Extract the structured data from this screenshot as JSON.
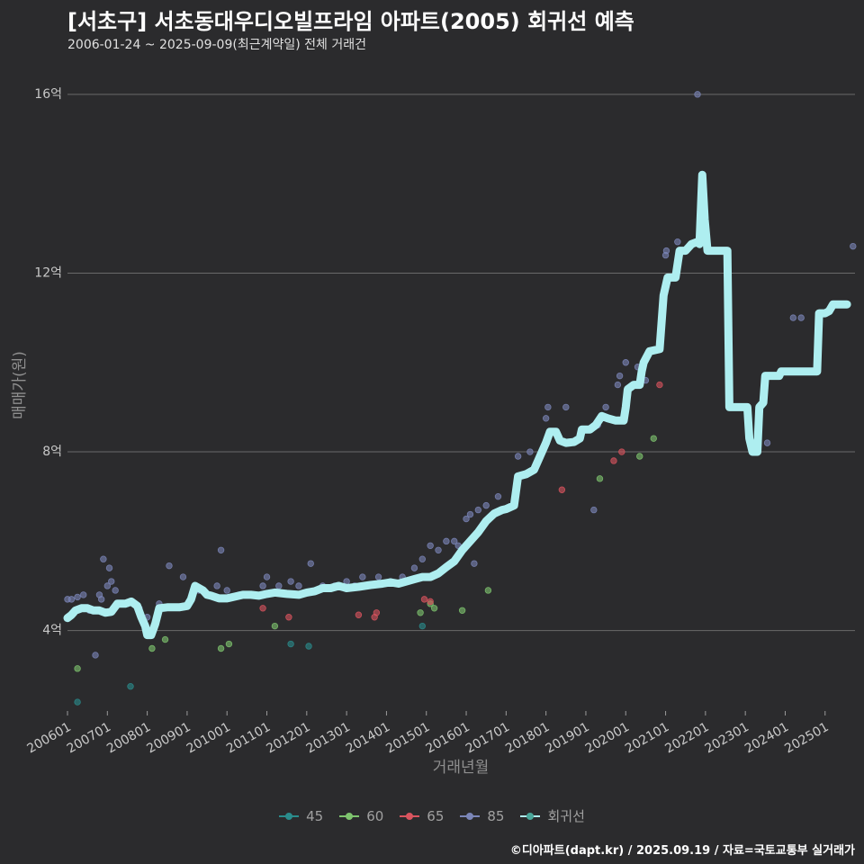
{
  "header": {
    "title": "[서초구] 서초동대우디오빌프라임 아파트(2005) 회귀선 예측",
    "subtitle": "2006-01-24 ~ 2025-09-09(최근계약일) 전체 거래건"
  },
  "footer": {
    "credit": "©디아파트(dapt.kr) / 2025.09.19 / 자료=국토교통부 실거래가"
  },
  "colors": {
    "background": "#2b2b2d",
    "grid": "#6a6a6a",
    "regression": "#aeeef0"
  },
  "chart_data": {
    "type": "scatter",
    "title": "[서초구] 서초동대우디오빌프라임 아파트(2005) 회귀선 예측",
    "subtitle": "2006-01-24 ~ 2025-09-09(최근계약일) 전체 거래건",
    "xlabel": "거래년월",
    "ylabel": "매매가(원)",
    "xlim": [
      2006.0,
      2025.75
    ],
    "ylim": [
      2.2,
      16.4
    ],
    "grid": true,
    "legend_position": "bottom",
    "x_ticks": [
      {
        "value": 2006.0,
        "label": "200601"
      },
      {
        "value": 2007.0,
        "label": "200701"
      },
      {
        "value": 2008.0,
        "label": "200801"
      },
      {
        "value": 2009.0,
        "label": "200901"
      },
      {
        "value": 2010.0,
        "label": "201001"
      },
      {
        "value": 2011.0,
        "label": "201101"
      },
      {
        "value": 2012.0,
        "label": "201201"
      },
      {
        "value": 2013.0,
        "label": "201301"
      },
      {
        "value": 2014.0,
        "label": "201401"
      },
      {
        "value": 2015.0,
        "label": "201501"
      },
      {
        "value": 2016.0,
        "label": "201601"
      },
      {
        "value": 2017.0,
        "label": "201701"
      },
      {
        "value": 2018.0,
        "label": "201801"
      },
      {
        "value": 2019.0,
        "label": "201901"
      },
      {
        "value": 2020.0,
        "label": "202001"
      },
      {
        "value": 2021.0,
        "label": "202101"
      },
      {
        "value": 2022.0,
        "label": "202201"
      },
      {
        "value": 2023.0,
        "label": "202301"
      },
      {
        "value": 2024.0,
        "label": "202401"
      },
      {
        "value": 2025.0,
        "label": "202501"
      }
    ],
    "y_ticks": [
      {
        "value": 4,
        "label": "4억"
      },
      {
        "value": 8,
        "label": "8억"
      },
      {
        "value": 12,
        "label": "12억"
      },
      {
        "value": 16,
        "label": "16억"
      }
    ],
    "series": [
      {
        "name": "45",
        "color": "#2a8c8c",
        "points": [
          [
            2006.25,
            2.4
          ],
          [
            2007.58,
            2.75
          ],
          [
            2011.6,
            3.7
          ],
          [
            2012.05,
            3.65
          ],
          [
            2014.9,
            4.1
          ]
        ]
      },
      {
        "name": "60",
        "color": "#7ec46e",
        "points": [
          [
            2006.25,
            3.15
          ],
          [
            2008.12,
            3.6
          ],
          [
            2008.45,
            3.8
          ],
          [
            2009.85,
            3.6
          ],
          [
            2010.05,
            3.7
          ],
          [
            2011.2,
            4.1
          ],
          [
            2014.85,
            4.4
          ],
          [
            2015.1,
            4.6
          ],
          [
            2015.2,
            4.5
          ],
          [
            2015.9,
            4.45
          ],
          [
            2016.55,
            4.9
          ],
          [
            2019.35,
            7.4
          ],
          [
            2020.35,
            7.9
          ],
          [
            2020.7,
            8.3
          ]
        ]
      },
      {
        "name": "65",
        "color": "#d9545e",
        "points": [
          [
            2010.9,
            4.5
          ],
          [
            2011.55,
            4.3
          ],
          [
            2013.3,
            4.35
          ],
          [
            2013.7,
            4.3
          ],
          [
            2013.75,
            4.4
          ],
          [
            2014.95,
            4.7
          ],
          [
            2015.1,
            4.65
          ],
          [
            2018.4,
            7.15
          ],
          [
            2019.7,
            7.8
          ],
          [
            2019.9,
            8.0
          ],
          [
            2020.85,
            9.5
          ]
        ]
      },
      {
        "name": "85",
        "color": "#7b86b8",
        "points": [
          [
            2006.0,
            4.7
          ],
          [
            2006.1,
            4.7
          ],
          [
            2006.25,
            4.75
          ],
          [
            2006.4,
            4.8
          ],
          [
            2006.55,
            4.45
          ],
          [
            2006.7,
            3.45
          ],
          [
            2006.8,
            4.8
          ],
          [
            2006.85,
            4.7
          ],
          [
            2006.9,
            5.6
          ],
          [
            2007.0,
            5.0
          ],
          [
            2007.05,
            5.4
          ],
          [
            2007.1,
            5.1
          ],
          [
            2007.2,
            4.9
          ],
          [
            2007.3,
            4.6
          ],
          [
            2007.5,
            4.6
          ],
          [
            2007.8,
            4.5
          ],
          [
            2008.0,
            4.3
          ],
          [
            2008.3,
            4.6
          ],
          [
            2008.55,
            5.45
          ],
          [
            2008.9,
            5.2
          ],
          [
            2009.3,
            4.9
          ],
          [
            2009.55,
            4.8
          ],
          [
            2009.75,
            5.0
          ],
          [
            2009.85,
            5.8
          ],
          [
            2010.0,
            4.9
          ],
          [
            2010.3,
            4.8
          ],
          [
            2010.6,
            4.8
          ],
          [
            2010.9,
            5.0
          ],
          [
            2011.0,
            5.2
          ],
          [
            2011.3,
            5.0
          ],
          [
            2011.6,
            5.1
          ],
          [
            2011.8,
            5.0
          ],
          [
            2012.1,
            5.5
          ],
          [
            2012.4,
            5.0
          ],
          [
            2012.7,
            5.0
          ],
          [
            2013.0,
            5.1
          ],
          [
            2013.2,
            5.0
          ],
          [
            2013.4,
            5.2
          ],
          [
            2013.8,
            5.2
          ],
          [
            2014.1,
            5.1
          ],
          [
            2014.4,
            5.2
          ],
          [
            2014.7,
            5.4
          ],
          [
            2014.9,
            5.6
          ],
          [
            2015.1,
            5.9
          ],
          [
            2015.3,
            5.8
          ],
          [
            2015.5,
            6.0
          ],
          [
            2015.7,
            6.0
          ],
          [
            2015.8,
            5.9
          ],
          [
            2016.0,
            6.5
          ],
          [
            2016.1,
            6.6
          ],
          [
            2016.2,
            5.5
          ],
          [
            2016.3,
            6.7
          ],
          [
            2016.5,
            6.8
          ],
          [
            2016.8,
            7.0
          ],
          [
            2017.3,
            7.9
          ],
          [
            2017.6,
            8.0
          ],
          [
            2018.0,
            8.75
          ],
          [
            2018.05,
            9.0
          ],
          [
            2018.5,
            9.0
          ],
          [
            2019.2,
            6.7
          ],
          [
            2019.3,
            8.6
          ],
          [
            2019.5,
            9.0
          ],
          [
            2019.8,
            9.5
          ],
          [
            2019.85,
            9.7
          ],
          [
            2020.0,
            10.0
          ],
          [
            2020.3,
            9.9
          ],
          [
            2020.5,
            9.6
          ],
          [
            2020.8,
            10.3
          ],
          [
            2021.0,
            12.4
          ],
          [
            2021.02,
            12.5
          ],
          [
            2021.3,
            12.7
          ],
          [
            2021.8,
            16.0
          ],
          [
            2023.55,
            8.2
          ],
          [
            2024.2,
            11.0
          ],
          [
            2024.4,
            11.0
          ],
          [
            2025.7,
            12.6
          ]
        ]
      },
      {
        "name": "회귀선",
        "color": "#aeeef0",
        "line": [
          [
            2006.0,
            4.28
          ],
          [
            2006.1,
            4.35
          ],
          [
            2006.2,
            4.45
          ],
          [
            2006.35,
            4.5
          ],
          [
            2006.5,
            4.5
          ],
          [
            2006.65,
            4.45
          ],
          [
            2006.8,
            4.45
          ],
          [
            2006.95,
            4.4
          ],
          [
            2007.1,
            4.42
          ],
          [
            2007.25,
            4.6
          ],
          [
            2007.45,
            4.6
          ],
          [
            2007.6,
            4.65
          ],
          [
            2007.75,
            4.55
          ],
          [
            2007.85,
            4.3
          ],
          [
            2007.95,
            4.1
          ],
          [
            2008.0,
            3.9
          ],
          [
            2008.1,
            3.9
          ],
          [
            2008.2,
            4.15
          ],
          [
            2008.3,
            4.5
          ],
          [
            2008.5,
            4.52
          ],
          [
            2008.8,
            4.52
          ],
          [
            2009.0,
            4.55
          ],
          [
            2009.1,
            4.7
          ],
          [
            2009.2,
            5.0
          ],
          [
            2009.3,
            4.95
          ],
          [
            2009.4,
            4.9
          ],
          [
            2009.5,
            4.8
          ],
          [
            2009.6,
            4.78
          ],
          [
            2009.8,
            4.72
          ],
          [
            2010.0,
            4.72
          ],
          [
            2010.2,
            4.76
          ],
          [
            2010.4,
            4.8
          ],
          [
            2010.6,
            4.8
          ],
          [
            2010.8,
            4.78
          ],
          [
            2011.0,
            4.82
          ],
          [
            2011.2,
            4.85
          ],
          [
            2011.5,
            4.82
          ],
          [
            2011.8,
            4.8
          ],
          [
            2012.0,
            4.85
          ],
          [
            2012.2,
            4.88
          ],
          [
            2012.4,
            4.95
          ],
          [
            2012.6,
            4.95
          ],
          [
            2012.8,
            5.0
          ],
          [
            2013.0,
            4.95
          ],
          [
            2013.3,
            4.98
          ],
          [
            2013.6,
            5.02
          ],
          [
            2013.9,
            5.05
          ],
          [
            2014.1,
            5.08
          ],
          [
            2014.3,
            5.05
          ],
          [
            2014.5,
            5.1
          ],
          [
            2014.7,
            5.15
          ],
          [
            2014.9,
            5.2
          ],
          [
            2015.1,
            5.2
          ],
          [
            2015.3,
            5.28
          ],
          [
            2015.5,
            5.42
          ],
          [
            2015.7,
            5.55
          ],
          [
            2015.9,
            5.8
          ],
          [
            2016.1,
            6.0
          ],
          [
            2016.3,
            6.2
          ],
          [
            2016.5,
            6.45
          ],
          [
            2016.7,
            6.62
          ],
          [
            2016.9,
            6.7
          ],
          [
            2017.0,
            6.72
          ],
          [
            2017.2,
            6.8
          ],
          [
            2017.3,
            7.45
          ],
          [
            2017.5,
            7.5
          ],
          [
            2017.7,
            7.6
          ],
          [
            2017.85,
            7.9
          ],
          [
            2018.0,
            8.2
          ],
          [
            2018.1,
            8.45
          ],
          [
            2018.25,
            8.45
          ],
          [
            2018.35,
            8.25
          ],
          [
            2018.5,
            8.2
          ],
          [
            2018.7,
            8.22
          ],
          [
            2018.85,
            8.3
          ],
          [
            2018.9,
            8.5
          ],
          [
            2019.1,
            8.5
          ],
          [
            2019.25,
            8.6
          ],
          [
            2019.4,
            8.8
          ],
          [
            2019.55,
            8.75
          ],
          [
            2019.75,
            8.7
          ],
          [
            2019.95,
            8.7
          ],
          [
            2020.0,
            9.0
          ],
          [
            2020.05,
            9.4
          ],
          [
            2020.2,
            9.5
          ],
          [
            2020.35,
            9.5
          ],
          [
            2020.4,
            9.8
          ],
          [
            2020.45,
            10.0
          ],
          [
            2020.6,
            10.25
          ],
          [
            2020.85,
            10.3
          ],
          [
            2020.95,
            11.5
          ],
          [
            2021.05,
            11.9
          ],
          [
            2021.25,
            11.9
          ],
          [
            2021.35,
            12.5
          ],
          [
            2021.5,
            12.5
          ],
          [
            2021.65,
            12.65
          ],
          [
            2021.8,
            12.7
          ],
          [
            2021.85,
            12.65
          ],
          [
            2021.92,
            14.2
          ],
          [
            2021.98,
            13.2
          ],
          [
            2022.05,
            12.5
          ],
          [
            2022.3,
            12.5
          ],
          [
            2022.55,
            12.5
          ],
          [
            2022.6,
            9.0
          ],
          [
            2022.8,
            9.0
          ],
          [
            2023.05,
            9.0
          ],
          [
            2023.1,
            8.3
          ],
          [
            2023.18,
            8.0
          ],
          [
            2023.3,
            8.0
          ],
          [
            2023.35,
            9.0
          ],
          [
            2023.45,
            9.1
          ],
          [
            2023.5,
            9.7
          ],
          [
            2023.7,
            9.7
          ],
          [
            2023.85,
            9.7
          ],
          [
            2023.9,
            9.8
          ],
          [
            2024.2,
            9.8
          ],
          [
            2024.5,
            9.8
          ],
          [
            2024.8,
            9.8
          ],
          [
            2024.85,
            11.1
          ],
          [
            2025.0,
            11.1
          ],
          [
            2025.1,
            11.15
          ],
          [
            2025.2,
            11.3
          ],
          [
            2025.45,
            11.3
          ],
          [
            2025.55,
            11.3
          ]
        ]
      }
    ]
  }
}
